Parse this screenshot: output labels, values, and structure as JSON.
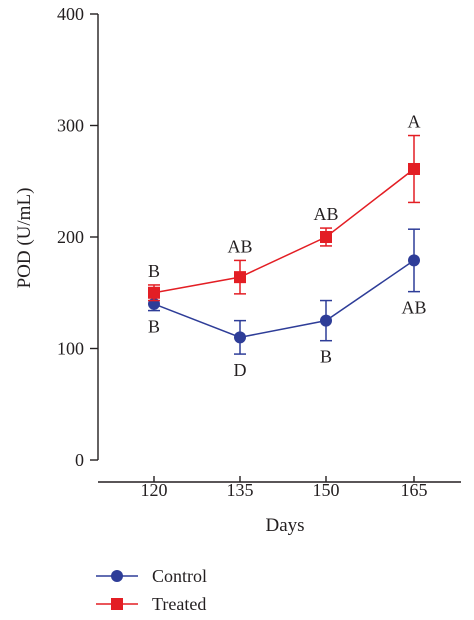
{
  "chart_data": {
    "type": "line",
    "title": "",
    "xlabel": "Days",
    "ylabel": "POD (U/mL)",
    "x": [
      120,
      135,
      150,
      165
    ],
    "x_ticks": [
      "120",
      "135",
      "150",
      "165"
    ],
    "y_ticks": [
      "0",
      "100",
      "200",
      "300",
      "400"
    ],
    "ylim": [
      0,
      400
    ],
    "grid": false,
    "legend_position": "bottom-left",
    "series": [
      {
        "name": "Control",
        "color": "#2e3d98",
        "marker": "circle",
        "values": [
          140,
          110,
          125,
          179
        ],
        "error": [
          6,
          15,
          18,
          28
        ],
        "labels": [
          "B",
          "D",
          "B",
          "AB"
        ],
        "label_side": [
          "below",
          "below",
          "below",
          "below"
        ]
      },
      {
        "name": "Treated",
        "color": "#e31e24",
        "marker": "square",
        "values": [
          150,
          164,
          200,
          261
        ],
        "error": [
          7,
          15,
          8,
          30
        ],
        "labels": [
          "B",
          "AB",
          "AB",
          "A"
        ],
        "label_side": [
          "above",
          "above",
          "above",
          "above"
        ]
      }
    ]
  }
}
